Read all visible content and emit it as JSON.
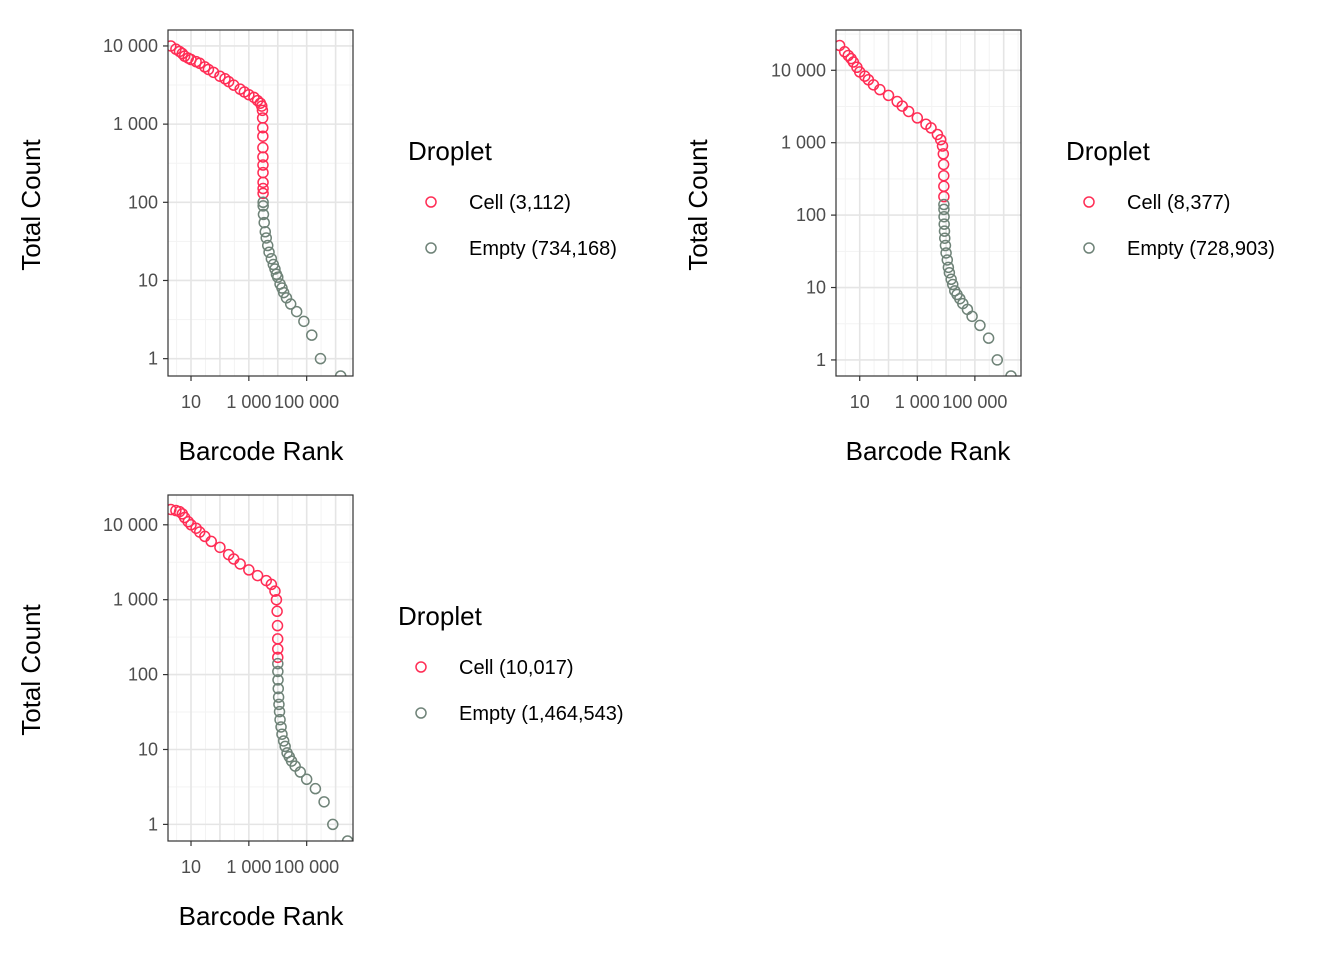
{
  "colors": {
    "cell": "#ff2d55",
    "empty": "#6f8378",
    "grid_major": "#e5e5e5",
    "grid_minor": "#f3f3f3",
    "panel_border": "#333333",
    "tick_text": "#4d4d4d"
  },
  "chart_data": [
    {
      "type": "scatter",
      "scale": "log-log",
      "title": "",
      "xlabel": "Barcode Rank",
      "ylabel": "Total Count",
      "xlim": [
        1.6,
        4000000
      ],
      "ylim": [
        0.6,
        16000
      ],
      "x_ticks": [
        10,
        1000,
        100000
      ],
      "x_tick_labels": [
        "10",
        "1 000",
        "100 000"
      ],
      "y_ticks": [
        1,
        10,
        100,
        1000,
        10000
      ],
      "y_tick_labels": [
        "1",
        "10",
        "100",
        "1 000",
        "10 000"
      ],
      "grid": true,
      "legend": {
        "title": "Droplet",
        "placement": "right",
        "entries": [
          "Cell (3,112)",
          "Empty (734,168)"
        ]
      },
      "series": [
        {
          "name": "Cell (3,112)",
          "points": [
            [
              2,
              10000
            ],
            [
              3,
              9100
            ],
            [
              4,
              8500
            ],
            [
              5,
              8000
            ],
            [
              6,
              7400
            ],
            [
              8,
              7000
            ],
            [
              10,
              6700
            ],
            [
              15,
              6300
            ],
            [
              20,
              6000
            ],
            [
              30,
              5400
            ],
            [
              40,
              5000
            ],
            [
              60,
              4600
            ],
            [
              100,
              4100
            ],
            [
              150,
              3800
            ],
            [
              200,
              3500
            ],
            [
              300,
              3150
            ],
            [
              500,
              2800
            ],
            [
              700,
              2580
            ],
            [
              1000,
              2380
            ],
            [
              1500,
              2200
            ],
            [
              2000,
              2000
            ],
            [
              2500,
              1850
            ],
            [
              2800,
              1700
            ],
            [
              2950,
              1500
            ],
            [
              3000,
              1200
            ],
            [
              3030,
              900
            ],
            [
              3050,
              700
            ],
            [
              3060,
              500
            ],
            [
              3070,
              380
            ],
            [
              3080,
              300
            ],
            [
              3090,
              240
            ],
            [
              3100,
              180
            ],
            [
              3105,
              150
            ],
            [
              3112,
              130
            ]
          ]
        },
        {
          "name": "Empty (734,168)",
          "points": [
            [
              3120,
              100
            ],
            [
              3130,
              90
            ],
            [
              3200,
              70
            ],
            [
              3400,
              55
            ],
            [
              3700,
              42
            ],
            [
              4000,
              35
            ],
            [
              4500,
              28
            ],
            [
              5000,
              23
            ],
            [
              6000,
              19
            ],
            [
              7000,
              16
            ],
            [
              8000,
              14
            ],
            [
              9000,
              12
            ],
            [
              10000,
              11
            ],
            [
              12000,
              9
            ],
            [
              14000,
              8
            ],
            [
              16000,
              7
            ],
            [
              20000,
              6
            ],
            [
              28000,
              5
            ],
            [
              45000,
              4
            ],
            [
              80000,
              3
            ],
            [
              150000,
              2
            ],
            [
              300000,
              1
            ],
            [
              1500000,
              0.6
            ]
          ]
        }
      ]
    },
    {
      "type": "scatter",
      "scale": "log-log",
      "title": "",
      "xlabel": "Barcode Rank",
      "ylabel": "Total Count",
      "xlim": [
        1.5,
        4000000
      ],
      "ylim": [
        0.6,
        36000
      ],
      "x_ticks": [
        10,
        1000,
        100000
      ],
      "x_tick_labels": [
        "10",
        "1 000",
        "100 000"
      ],
      "y_ticks": [
        1,
        10,
        100,
        1000,
        10000
      ],
      "y_tick_labels": [
        "1",
        "10",
        "100",
        "1 000",
        "10 000"
      ],
      "grid": true,
      "legend": {
        "title": "Droplet",
        "placement": "right",
        "entries": [
          "Cell (8,377)",
          "Empty (728,903)"
        ]
      },
      "series": [
        {
          "name": "Cell (8,377)",
          "points": [
            [
              2,
              22000
            ],
            [
              3,
              18000
            ],
            [
              4,
              16000
            ],
            [
              5,
              14500
            ],
            [
              6,
              13000
            ],
            [
              8,
              11000
            ],
            [
              10,
              9500
            ],
            [
              15,
              8300
            ],
            [
              20,
              7400
            ],
            [
              30,
              6300
            ],
            [
              50,
              5400
            ],
            [
              100,
              4500
            ],
            [
              200,
              3700
            ],
            [
              300,
              3200
            ],
            [
              500,
              2700
            ],
            [
              1000,
              2200
            ],
            [
              2000,
              1800
            ],
            [
              3000,
              1600
            ],
            [
              5000,
              1300
            ],
            [
              6500,
              1100
            ],
            [
              7500,
              900
            ],
            [
              8000,
              700
            ],
            [
              8200,
              500
            ],
            [
              8300,
              350
            ],
            [
              8350,
              250
            ],
            [
              8377,
              180
            ]
          ]
        },
        {
          "name": "Empty (728,903)",
          "points": [
            [
              8390,
              140
            ],
            [
              8420,
              120
            ],
            [
              8500,
              95
            ],
            [
              8600,
              75
            ],
            [
              8800,
              60
            ],
            [
              9000,
              48
            ],
            [
              9500,
              38
            ],
            [
              10000,
              30
            ],
            [
              11000,
              24
            ],
            [
              12000,
              19
            ],
            [
              13000,
              16
            ],
            [
              15000,
              13
            ],
            [
              17000,
              11
            ],
            [
              20000,
              9
            ],
            [
              24000,
              8
            ],
            [
              30000,
              7
            ],
            [
              38000,
              6
            ],
            [
              55000,
              5
            ],
            [
              80000,
              4
            ],
            [
              150000,
              3
            ],
            [
              300000,
              2
            ],
            [
              600000,
              1
            ],
            [
              1800000,
              0.6
            ]
          ]
        }
      ]
    },
    {
      "type": "scatter",
      "scale": "log-log",
      "title": "",
      "xlabel": "Barcode Rank",
      "ylabel": "Total Count",
      "xlim": [
        1.6,
        4000000
      ],
      "ylim": [
        0.6,
        25000
      ],
      "x_ticks": [
        10,
        1000,
        100000
      ],
      "x_tick_labels": [
        "10",
        "1 000",
        "100 000"
      ],
      "y_ticks": [
        1,
        10,
        100,
        1000,
        10000
      ],
      "y_tick_labels": [
        "1",
        "10",
        "100",
        "1 000",
        "10 000"
      ],
      "grid": true,
      "legend": {
        "title": "Droplet",
        "placement": "right",
        "entries": [
          "Cell (10,017)",
          "Empty (1,464,543)"
        ]
      },
      "series": [
        {
          "name": "Cell (10,017)",
          "points": [
            [
              2,
              16000
            ],
            [
              3,
              15500
            ],
            [
              4,
              15000
            ],
            [
              5,
              14000
            ],
            [
              6,
              12500
            ],
            [
              8,
              11000
            ],
            [
              10,
              10000
            ],
            [
              15,
              9000
            ],
            [
              20,
              8000
            ],
            [
              30,
              7000
            ],
            [
              50,
              6000
            ],
            [
              100,
              5000
            ],
            [
              200,
              4000
            ],
            [
              300,
              3500
            ],
            [
              500,
              3000
            ],
            [
              1000,
              2500
            ],
            [
              2000,
              2100
            ],
            [
              4000,
              1800
            ],
            [
              6000,
              1600
            ],
            [
              8000,
              1300
            ],
            [
              9000,
              1000
            ],
            [
              9500,
              700
            ],
            [
              9800,
              450
            ],
            [
              9950,
              300
            ],
            [
              10000,
              220
            ],
            [
              10017,
              170
            ]
          ]
        },
        {
          "name": "Empty (1,464,543)",
          "points": [
            [
              10030,
              140
            ],
            [
              10080,
              110
            ],
            [
              10200,
              85
            ],
            [
              10400,
              65
            ],
            [
              10700,
              50
            ],
            [
              11000,
              40
            ],
            [
              11500,
              32
            ],
            [
              12000,
              25
            ],
            [
              13000,
              20
            ],
            [
              14000,
              16
            ],
            [
              16000,
              13
            ],
            [
              18000,
              11
            ],
            [
              21000,
              9
            ],
            [
              25000,
              8
            ],
            [
              30000,
              7
            ],
            [
              40000,
              6
            ],
            [
              60000,
              5
            ],
            [
              100000,
              4
            ],
            [
              200000,
              3
            ],
            [
              400000,
              2
            ],
            [
              800000,
              1
            ],
            [
              2600000,
              0.6
            ]
          ]
        }
      ]
    }
  ]
}
